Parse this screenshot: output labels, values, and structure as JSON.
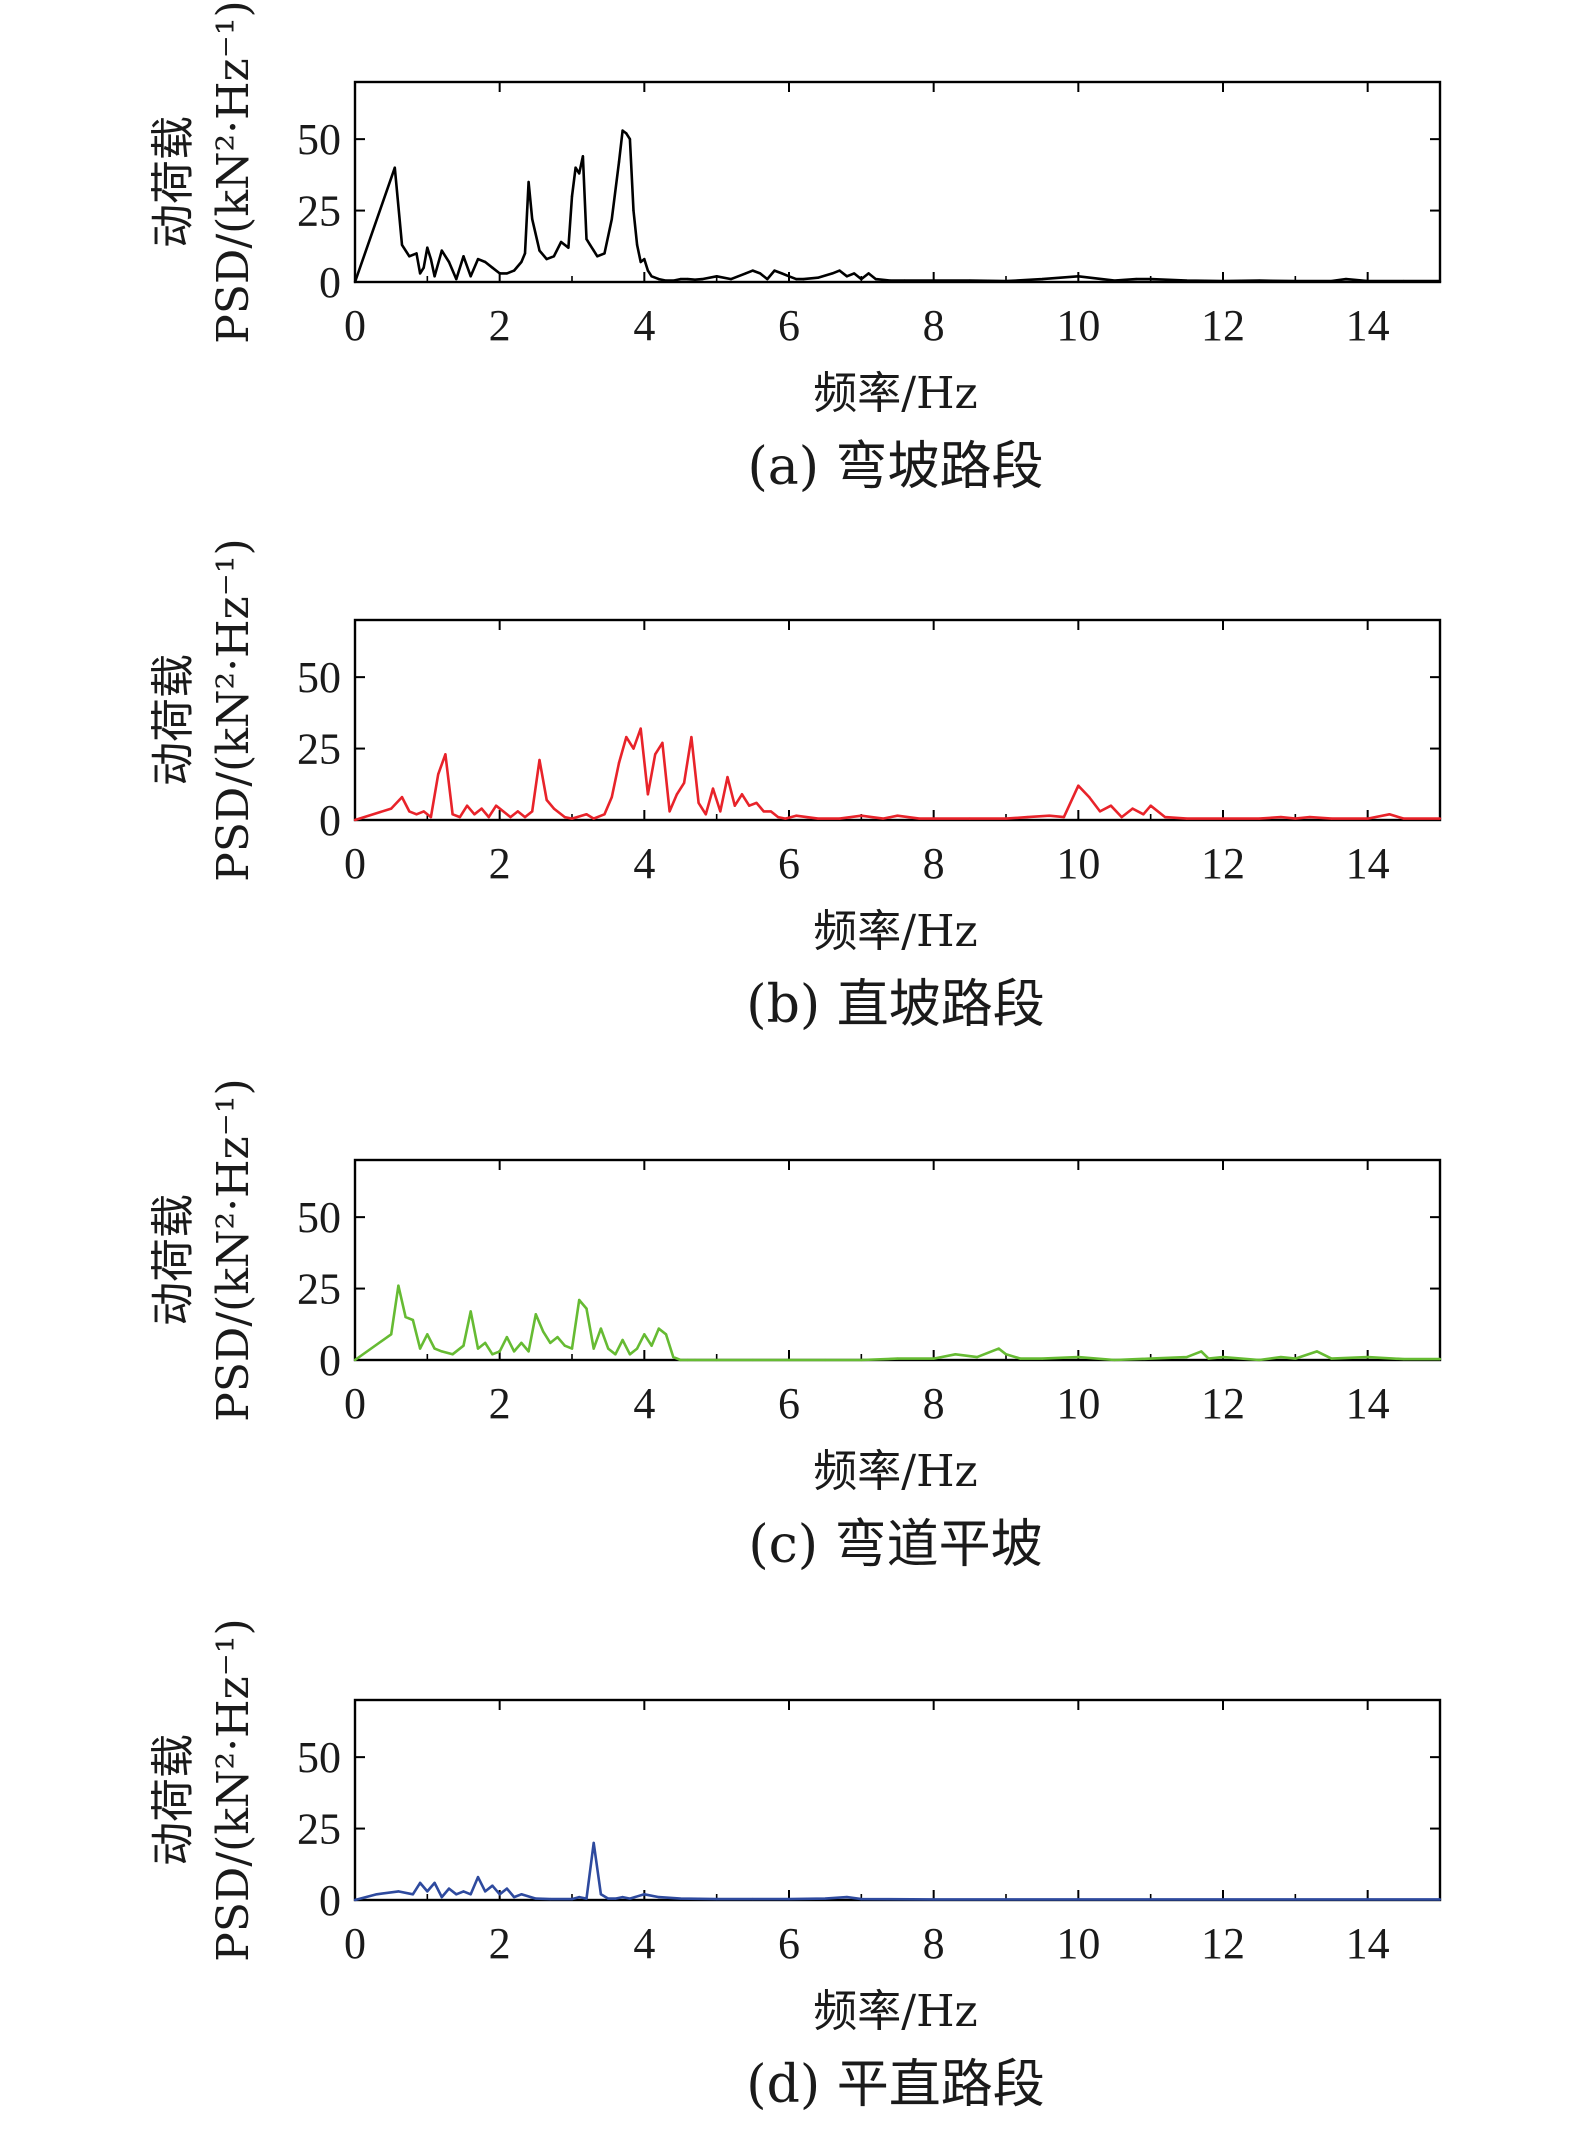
{
  "chart_data": [
    {
      "type": "line",
      "caption": "(a) 弯坡路段",
      "xlabel": "频率/Hz",
      "ylabel": "动荷载",
      "ylabel2": "PSD/(kN²·Hz⁻¹)",
      "xlim": [
        0,
        15
      ],
      "ylim": [
        0,
        70
      ],
      "xticks": [
        0,
        2,
        4,
        6,
        8,
        10,
        12,
        14
      ],
      "yticks": [
        0,
        25,
        50
      ],
      "color": "#000000",
      "x": [
        0,
        0.55,
        0.65,
        0.75,
        0.85,
        0.9,
        0.95,
        1.0,
        1.05,
        1.1,
        1.2,
        1.3,
        1.4,
        1.5,
        1.6,
        1.7,
        1.8,
        1.9,
        2.0,
        2.1,
        2.2,
        2.3,
        2.35,
        2.4,
        2.45,
        2.55,
        2.65,
        2.75,
        2.85,
        2.95,
        3.0,
        3.05,
        3.1,
        3.15,
        3.2,
        3.25,
        3.3,
        3.35,
        3.45,
        3.55,
        3.65,
        3.7,
        3.75,
        3.8,
        3.85,
        3.9,
        3.95,
        4.0,
        4.05,
        4.1,
        4.2,
        4.3,
        4.4,
        4.5,
        4.6,
        4.7,
        4.8,
        5.0,
        5.2,
        5.4,
        5.5,
        5.6,
        5.7,
        5.8,
        5.9,
        6.0,
        6.1,
        6.2,
        6.4,
        6.6,
        6.7,
        6.8,
        6.9,
        7.0,
        7.1,
        7.2,
        7.4,
        7.6,
        8.0,
        8.5,
        9.0,
        9.5,
        10.0,
        10.5,
        10.8,
        11.0,
        11.5,
        12.0,
        12.5,
        13.0,
        13.5,
        13.7,
        14.0,
        14.5,
        15.0
      ],
      "y": [
        0,
        40,
        13,
        9,
        10,
        3,
        5,
        12,
        8,
        2,
        11,
        7,
        1,
        9,
        2,
        8,
        7,
        5,
        3,
        3,
        4,
        7,
        10,
        35,
        22,
        11,
        8,
        9,
        14,
        12,
        30,
        40,
        38,
        44,
        15,
        13,
        11,
        9,
        10,
        22,
        42,
        53,
        52,
        50,
        25,
        13,
        7,
        8,
        4,
        2,
        1,
        0.5,
        0.5,
        1,
        1,
        0.8,
        1,
        2,
        1,
        3,
        4,
        3,
        1,
        4,
        3,
        2,
        1,
        1,
        1.5,
        3,
        4,
        2,
        3,
        1,
        3,
        1,
        0.5,
        0.5,
        0.5,
        0.5,
        0.3,
        1,
        2,
        0.5,
        1,
        1,
        0.5,
        0.3,
        0.5,
        0.3,
        0.3,
        1,
        0.3,
        0.3,
        0.3
      ]
    },
    {
      "type": "line",
      "caption": "(b) 直坡路段",
      "xlabel": "频率/Hz",
      "ylabel": "动荷载",
      "ylabel2": "PSD/(kN²·Hz⁻¹)",
      "xlim": [
        0,
        15
      ],
      "ylim": [
        0,
        70
      ],
      "xticks": [
        0,
        2,
        4,
        6,
        8,
        10,
        12,
        14
      ],
      "yticks": [
        0,
        25,
        50
      ],
      "color": "#e8232a",
      "x": [
        0,
        0.5,
        0.65,
        0.75,
        0.85,
        0.95,
        1.05,
        1.15,
        1.25,
        1.35,
        1.45,
        1.55,
        1.65,
        1.75,
        1.85,
        1.95,
        2.05,
        2.15,
        2.25,
        2.35,
        2.45,
        2.55,
        2.65,
        2.75,
        2.9,
        3.0,
        3.2,
        3.3,
        3.45,
        3.55,
        3.65,
        3.75,
        3.85,
        3.95,
        4.05,
        4.15,
        4.25,
        4.35,
        4.45,
        4.55,
        4.65,
        4.75,
        4.85,
        4.95,
        5.05,
        5.15,
        5.25,
        5.35,
        5.45,
        5.55,
        5.65,
        5.75,
        5.85,
        5.95,
        6.1,
        6.4,
        6.7,
        7.0,
        7.3,
        7.5,
        7.8,
        8.0,
        8.5,
        9.0,
        9.3,
        9.6,
        9.8,
        10.0,
        10.15,
        10.3,
        10.45,
        10.6,
        10.75,
        10.9,
        11.0,
        11.2,
        11.5,
        12.0,
        12.5,
        12.8,
        13.0,
        13.2,
        13.5,
        14.0,
        14.3,
        14.5,
        15.0
      ],
      "y": [
        0,
        4,
        8,
        3,
        2,
        3,
        1,
        16,
        23,
        2,
        1,
        5,
        2,
        4,
        1,
        5,
        3,
        1,
        3,
        1,
        3,
        21,
        7,
        4,
        1,
        0.5,
        2,
        0.5,
        2,
        8,
        20,
        29,
        25,
        32,
        9,
        23,
        27,
        3,
        9,
        13,
        29,
        6,
        2,
        11,
        3,
        15,
        5,
        9,
        5,
        6,
        3,
        3,
        1,
        0.5,
        1.5,
        0.5,
        0.5,
        1.5,
        0.5,
        1.5,
        0.5,
        0.5,
        0.5,
        0.5,
        1,
        1.5,
        1,
        12,
        8,
        3,
        5,
        1,
        4,
        2,
        5,
        1,
        0.5,
        0.5,
        0.5,
        1,
        0.5,
        1,
        0.5,
        0.5,
        2,
        0.5,
        0.5
      ]
    },
    {
      "type": "line",
      "caption": "(c) 弯道平坡",
      "xlabel": "频率/Hz",
      "ylabel": "动荷载",
      "ylabel2": "PSD/(kN²·Hz⁻¹)",
      "xlim": [
        0,
        15
      ],
      "ylim": [
        0,
        70
      ],
      "xticks": [
        0,
        2,
        4,
        6,
        8,
        10,
        12,
        14
      ],
      "yticks": [
        0,
        25,
        50
      ],
      "color": "#66bb33",
      "x": [
        0,
        0.5,
        0.6,
        0.7,
        0.8,
        0.9,
        1.0,
        1.1,
        1.2,
        1.35,
        1.5,
        1.6,
        1.7,
        1.8,
        1.9,
        2.0,
        2.1,
        2.2,
        2.3,
        2.4,
        2.5,
        2.6,
        2.7,
        2.8,
        2.9,
        3.0,
        3.1,
        3.2,
        3.3,
        3.4,
        3.5,
        3.6,
        3.7,
        3.8,
        3.9,
        4.0,
        4.1,
        4.2,
        4.3,
        4.4,
        4.5,
        4.6,
        4.7,
        5.0,
        5.5,
        6.0,
        6.5,
        7.0,
        7.5,
        8.0,
        8.3,
        8.6,
        8.9,
        9.0,
        9.2,
        9.5,
        10.0,
        10.5,
        11.0,
        11.5,
        11.7,
        11.8,
        12.0,
        12.5,
        12.8,
        13.0,
        13.3,
        13.5,
        14.0,
        14.5,
        15.0
      ],
      "y": [
        0,
        9,
        26,
        15,
        14,
        4,
        9,
        4,
        3,
        2,
        5,
        17,
        4,
        6,
        2,
        3,
        8,
        3,
        6,
        3,
        16,
        10,
        6,
        8,
        5,
        4,
        21,
        18,
        4,
        11,
        4,
        2,
        7,
        2,
        4,
        9,
        5,
        11,
        9,
        1,
        0,
        0,
        0,
        0,
        0,
        0,
        0,
        0,
        0.5,
        0.5,
        2,
        1,
        4,
        2,
        0.5,
        0.5,
        1,
        0,
        0.5,
        1,
        3,
        0.5,
        1,
        0,
        1,
        0.5,
        3,
        0.5,
        1,
        0.3,
        0.3
      ]
    },
    {
      "type": "line",
      "caption": "(d) 平直路段",
      "xlabel": "频率/Hz",
      "ylabel": "动荷载",
      "ylabel2": "PSD/(kN²·Hz⁻¹)",
      "xlim": [
        0,
        15
      ],
      "ylim": [
        0,
        70
      ],
      "xticks": [
        0,
        2,
        4,
        6,
        8,
        10,
        12,
        14
      ],
      "yticks": [
        0,
        25,
        50
      ],
      "color": "#2e4a9e",
      "x": [
        0,
        0.3,
        0.6,
        0.8,
        0.9,
        1.0,
        1.1,
        1.2,
        1.3,
        1.4,
        1.5,
        1.6,
        1.7,
        1.8,
        1.9,
        2.0,
        2.1,
        2.2,
        2.3,
        2.5,
        2.7,
        3.0,
        3.1,
        3.2,
        3.3,
        3.4,
        3.5,
        3.6,
        3.7,
        3.8,
        4.0,
        4.2,
        4.5,
        5.0,
        5.5,
        6.0,
        6.5,
        6.8,
        7.0,
        8.0,
        9.0,
        10.0,
        11.0,
        12.0,
        13.0,
        14.0,
        15.0
      ],
      "y": [
        0,
        2,
        3,
        2,
        6,
        3,
        6,
        1,
        4,
        2,
        3,
        2,
        8,
        3,
        5,
        2,
        4,
        1,
        2,
        0.5,
        0.3,
        0.3,
        1,
        0.5,
        20,
        2,
        0.5,
        0.5,
        1,
        0.5,
        2,
        1,
        0.5,
        0.3,
        0.3,
        0.3,
        0.5,
        1,
        0.3,
        0.2,
        0.2,
        0.2,
        0.2,
        0.2,
        0.2,
        0.2,
        0.2
      ]
    }
  ]
}
